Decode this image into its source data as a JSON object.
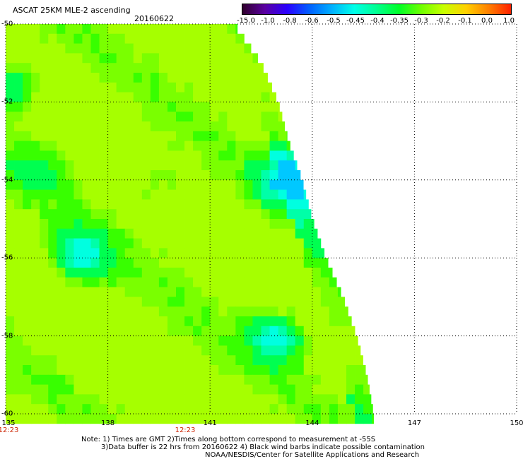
{
  "header": {
    "title": "ASCAT 25KM MLE-2 ascending",
    "date": "20160622"
  },
  "colorbar": {
    "labels": [
      "-15.0",
      "-1.0",
      "-0.8",
      "-0.6",
      "-0.5",
      "-0.45",
      "-0.4",
      "-0.35",
      "-0.3",
      "-0.2",
      "-0.1",
      "0.0",
      "1.0"
    ],
    "colors": [
      "#30002c",
      "#5a00a0",
      "#2a00ff",
      "#0060ff",
      "#00b0ff",
      "#00ffe8",
      "#00ff90",
      "#00ff28",
      "#70ff00",
      "#c8ff00",
      "#ffd000",
      "#ff8000",
      "#ff2000"
    ]
  },
  "axes": {
    "x_ticks": [
      "135",
      "138",
      "141",
      "144",
      "147",
      "150"
    ],
    "y_ticks": [
      "-50",
      "-52",
      "-54",
      "-56",
      "-58",
      "-60"
    ],
    "time_labels": [
      "12:23",
      "12:23"
    ]
  },
  "notes": {
    "line1": "Note: 1) Times are GMT 2)Times along bottom correspond to measurement at -55S",
    "line2": "3)Data buffer is 22 hrs from 20160622 4) Black wind barbs indicate possible contamination",
    "line3": "NOAA/NESDIS/Center for Satellite Applications and Research"
  },
  "map_data": {
    "lon_range": [
      135,
      150
    ],
    "lat_range": [
      -50,
      -60
    ],
    "field": "MLE-2",
    "swath_edge_east": [
      [
        -50,
        141.7
      ],
      [
        -51,
        142.5
      ],
      [
        -52,
        143.0
      ],
      [
        -53,
        143.3
      ],
      [
        -54,
        143.7
      ],
      [
        -55,
        144.0
      ],
      [
        -56,
        144.4
      ],
      [
        -57,
        144.9
      ],
      [
        -58,
        145.3
      ],
      [
        -59,
        145.6
      ],
      [
        -60,
        145.8
      ]
    ],
    "low_value_regions": [
      {
        "lat": -56.0,
        "lon": 137.2,
        "value": -0.45
      },
      {
        "lat": -58.0,
        "lon": 143.0,
        "value": -0.45
      },
      {
        "lat": -54.0,
        "lon": 143.2,
        "value": -0.45
      },
      {
        "lat": -51.6,
        "lon": 135.1,
        "value": -0.45
      },
      {
        "lat": -53.7,
        "lon": 136.0,
        "value": -0.35
      },
      {
        "lat": -54.2,
        "lon": 139.5,
        "value": -0.35
      }
    ]
  }
}
